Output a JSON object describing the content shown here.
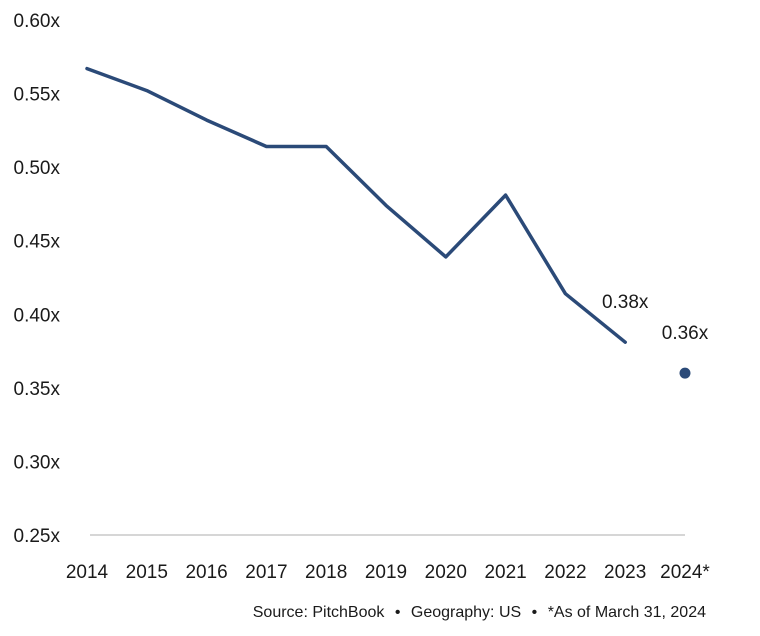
{
  "chart_data": {
    "type": "line",
    "categories": [
      "2014",
      "2015",
      "2016",
      "2017",
      "2018",
      "2019",
      "2020",
      "2021",
      "2022",
      "2023",
      "2024*"
    ],
    "series": [
      {
        "values": [
          0.567,
          0.552,
          0.532,
          0.514,
          0.514,
          0.474,
          0.439,
          0.481,
          0.414,
          0.381,
          null
        ],
        "color": "#2b4a78"
      }
    ],
    "highlight_point": {
      "category": "2024*",
      "value": 0.36,
      "marker": "dot"
    },
    "data_labels": [
      {
        "category": "2023",
        "text": "0.38x"
      },
      {
        "category": "2024*",
        "text": "0.36x"
      }
    ],
    "yticks": [
      "0.25x",
      "0.30x",
      "0.35x",
      "0.40x",
      "0.45x",
      "0.50x",
      "0.55x",
      "0.60x"
    ],
    "ylim": [
      0.25,
      0.6
    ],
    "grid": false,
    "legend": "none",
    "axis_color": "#c8c8c8"
  },
  "footer": {
    "source": "Source: PitchBook",
    "sep1": "•",
    "geography": "Geography: US",
    "sep2": "•",
    "note": "*As of March 31, 2024"
  }
}
